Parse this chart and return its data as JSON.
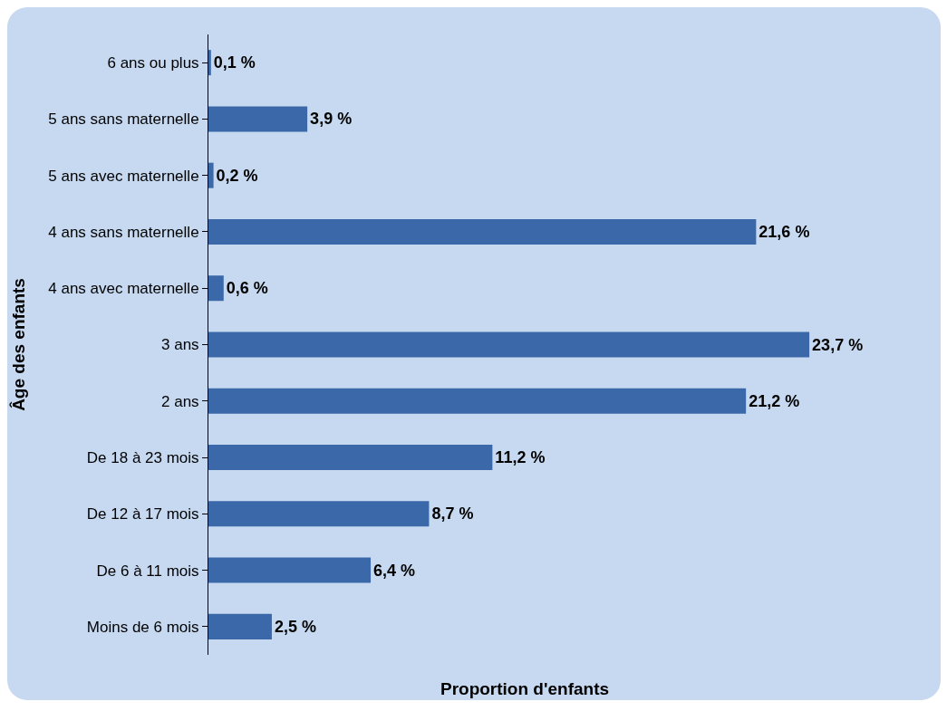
{
  "chart_data": {
    "type": "bar",
    "orientation": "horizontal",
    "xlabel": "Proportion d'enfants",
    "ylabel": "Âge des enfants",
    "categories": [
      "6 ans ou plus",
      "5 ans sans maternelle",
      "5 ans avec maternelle",
      "4 ans sans maternelle",
      "4 ans avec maternelle",
      "3 ans",
      "2 ans",
      "De 18 à 23 mois",
      "De 12 à 17 mois",
      "De 6 à 11 mois",
      "Moins de 6 mois"
    ],
    "values": [
      0.1,
      3.9,
      0.2,
      21.6,
      0.6,
      23.7,
      21.2,
      11.2,
      8.7,
      6.4,
      2.5
    ],
    "value_labels": [
      "0,1 %",
      "3,9 %",
      "0,2 %",
      "21,6 %",
      "0,6 %",
      "23,7 %",
      "21,2 %",
      "11,2 %",
      "8,7 %",
      "6,4 %",
      "2,5 %"
    ],
    "color": "#3b68a8",
    "grid": false,
    "tick_labels": "y"
  }
}
